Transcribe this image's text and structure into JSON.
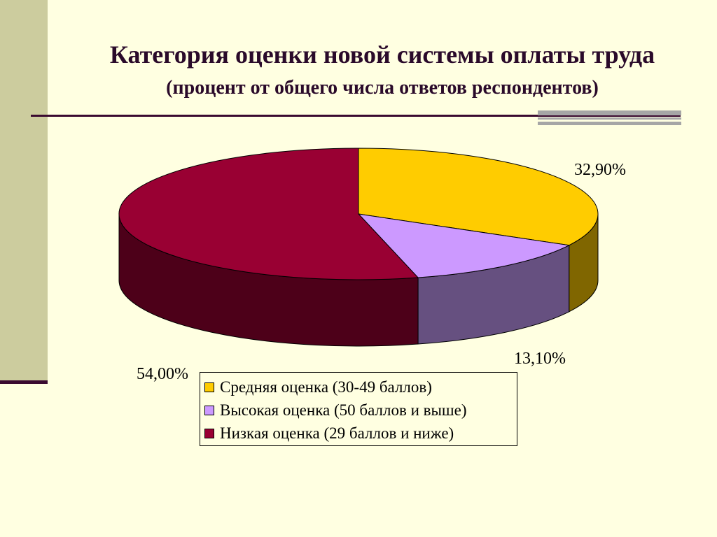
{
  "title": "Категория оценки новой системы оплаты труда",
  "subtitle": "(процент от общего числа ответов респондентов)",
  "chart_data": {
    "type": "pie",
    "title": "Категория оценки новой системы оплаты труда",
    "subtitle": "(процент от общего числа ответов респондентов)",
    "three_d": true,
    "legend_position": "bottom",
    "slices": [
      {
        "name": "Средняя оценка (30-49 баллов)",
        "value": 32.9,
        "label": "32,90%",
        "color": "#FFCC00",
        "side_color": "#806600"
      },
      {
        "name": "Высокая оценка (50 баллов и выше)",
        "value": 13.1,
        "label": "13,10%",
        "color": "#CC99FF",
        "side_color": "#665080"
      },
      {
        "name": "Низкая оценка (29 баллов и ниже)",
        "value": 54.0,
        "label": "54,00%",
        "color": "#990033",
        "side_color": "#4D0019"
      }
    ]
  },
  "colors": {
    "background": "#FFFFE1",
    "accent_band": "#CCCC9E",
    "rule": "#3A0A30",
    "gray_bar": "#A6A6A6"
  }
}
